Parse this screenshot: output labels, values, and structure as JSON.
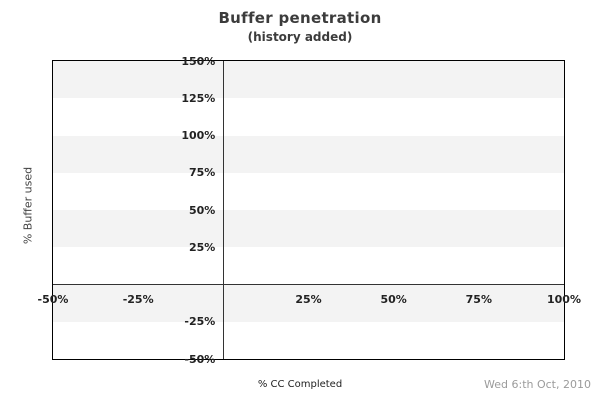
{
  "footer": {
    "date": "Wed 6:th Oct, 2010"
  },
  "colors": {
    "band": "#f3f3f3",
    "border": "#000000",
    "axis_line": "#333333",
    "title_text": "#3c3c3c",
    "tick_text": "#222222",
    "date_text": "#9b9b9b"
  },
  "chart_data": {
    "type": "scatter",
    "title": "Buffer penetration",
    "subtitle": "(history added)",
    "xlabel": "% CC Completed",
    "ylabel": "% Buffer used",
    "xlim": [
      -50,
      100
    ],
    "ylim": [
      -50,
      150
    ],
    "x_ticks": [
      {
        "value": -50,
        "label": "-50%"
      },
      {
        "value": -25,
        "label": "-25%"
      },
      {
        "value": 25,
        "label": "25%"
      },
      {
        "value": 50,
        "label": "50%"
      },
      {
        "value": 75,
        "label": "75%"
      },
      {
        "value": 100,
        "label": "100%"
      }
    ],
    "y_ticks": [
      {
        "value": 150,
        "label": "150%"
      },
      {
        "value": 125,
        "label": "125%"
      },
      {
        "value": 100,
        "label": "100%"
      },
      {
        "value": 75,
        "label": "75%"
      },
      {
        "value": 50,
        "label": "50%"
      },
      {
        "value": 25,
        "label": "25%"
      },
      {
        "value": -25,
        "label": "-25%"
      },
      {
        "value": -50,
        "label": "-50%"
      }
    ],
    "axis_cross": {
      "x_at": 0,
      "y_at": 0
    },
    "background_bands": [
      [
        125,
        150
      ],
      [
        75,
        100
      ],
      [
        25,
        50
      ],
      [
        -25,
        0
      ]
    ],
    "gridlines": "none",
    "legend": "none",
    "series": []
  }
}
